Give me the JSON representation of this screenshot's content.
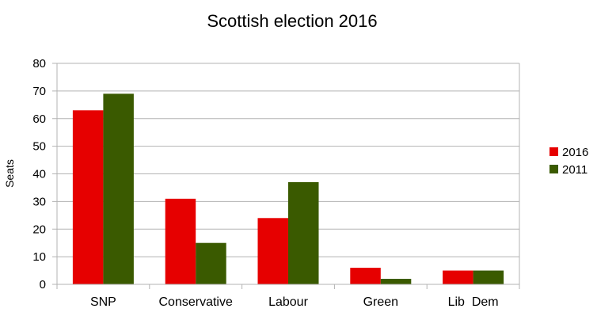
{
  "chart_data": {
    "type": "bar",
    "title": "Scottish election 2016",
    "xlabel": "",
    "ylabel": "Seats",
    "ylim": [
      0,
      80
    ],
    "yticks": [
      "0",
      "10",
      "20",
      "30",
      "40",
      "50",
      "60",
      "70",
      "80"
    ],
    "categories": [
      "SNP",
      "Conservative",
      "Labour",
      "Green",
      "Lib  Dem"
    ],
    "series": [
      {
        "name": "2016",
        "color": "#e60000",
        "values": [
          63,
          31,
          24,
          6,
          5
        ]
      },
      {
        "name": "2011",
        "color": "#3a5a00",
        "values": [
          69,
          15,
          37,
          2,
          5
        ]
      }
    ],
    "grid": true,
    "legend": "right"
  }
}
